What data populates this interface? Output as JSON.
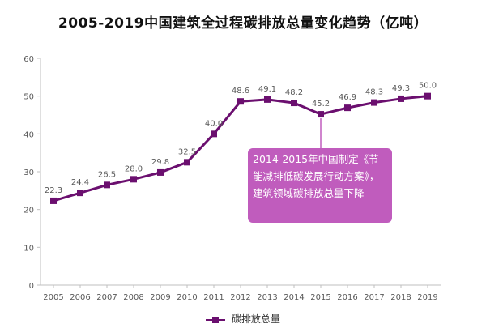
{
  "chart_data": {
    "type": "line",
    "title": "2005-2019中国建筑全过程碳排放总量变化趋势（亿吨）",
    "xlabel": "",
    "ylabel": "",
    "x": [
      "2005",
      "2006",
      "2007",
      "2008",
      "2009",
      "2010",
      "2011",
      "2012",
      "2013",
      "2014",
      "2015",
      "2016",
      "2017",
      "2018",
      "2019"
    ],
    "series": [
      {
        "name": "碳排放总量",
        "values": [
          22.3,
          24.4,
          26.5,
          28.0,
          29.8,
          32.5,
          40.0,
          48.6,
          49.1,
          48.2,
          45.2,
          46.9,
          48.3,
          49.3,
          50.0
        ],
        "labels": [
          "22.3",
          "24.4",
          "26.5",
          "28.0",
          "29.8",
          "32.5",
          "40.0",
          "48.6",
          "49.1",
          "48.2",
          "45.2",
          "46.9",
          "48.3",
          "49.3",
          "50.0"
        ],
        "color": "#6b0f6f"
      }
    ],
    "yticks": [
      "0",
      "10",
      "20",
      "30",
      "40",
      "50",
      "60"
    ],
    "ylim": [
      0,
      60
    ],
    "grid": false,
    "legend": "bottom",
    "annotation": {
      "text": "2014-2015年中国制定《节能减排低碳发展行动方案》，建筑领域碳排放总量下降",
      "color": "#c05cbd"
    }
  }
}
